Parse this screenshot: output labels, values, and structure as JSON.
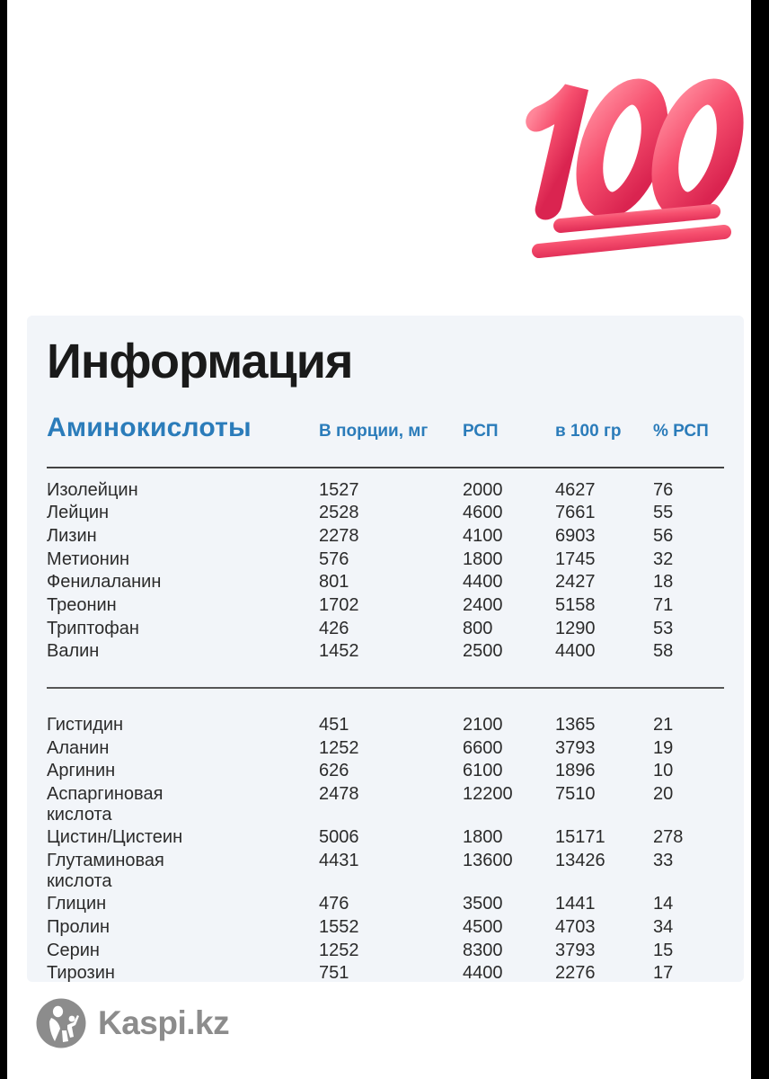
{
  "page": {
    "title": "Информация"
  },
  "emoji": {
    "name": "hundred-points",
    "value": "100"
  },
  "table": {
    "title": "Аминокислоты",
    "columns": [
      "В порции, мг",
      "РСП",
      "в 100 гр",
      "% РСП"
    ],
    "sections": [
      {
        "rows": [
          [
            "Изолейцин",
            "1527",
            "2000",
            "4627",
            "76"
          ],
          [
            "Лейцин",
            "2528",
            "4600",
            "7661",
            "55"
          ],
          [
            "Лизин",
            "2278",
            "4100",
            "6903",
            "56"
          ],
          [
            "Метионин",
            "576",
            "1800",
            "1745",
            "32"
          ],
          [
            "Фенилаланин",
            "801",
            "4400",
            "2427",
            "18"
          ],
          [
            "Треонин",
            "1702",
            "2400",
            "5158",
            "71"
          ],
          [
            "Триптофан",
            "426",
            "800",
            "1290",
            "53"
          ],
          [
            "Валин",
            "1452",
            "2500",
            "4400",
            "58"
          ]
        ]
      },
      {
        "rows": [
          [
            "Гистидин",
            "451",
            "2100",
            "1365",
            "21"
          ],
          [
            "Аланин",
            "1252",
            "6600",
            "3793",
            "19"
          ],
          [
            "Аргинин",
            "626",
            "6100",
            "1896",
            "10"
          ],
          [
            "Аспаргиновая\nкислота",
            "2478",
            "12200",
            "7510",
            "20"
          ],
          [
            "Цистин/Цистеин",
            "5006",
            "1800",
            "15171",
            "278"
          ],
          [
            "Глутаминовая\nкислота",
            "4431",
            "13600",
            "13426",
            "33"
          ],
          [
            "Глицин",
            "476",
            "3500",
            "1441",
            "14"
          ],
          [
            "Пролин",
            "1552",
            "4500",
            "4703",
            "34"
          ],
          [
            "Серин",
            "1252",
            "8300",
            "3793",
            "15"
          ],
          [
            "Тирозин",
            "751",
            "4400",
            "2276",
            "17"
          ]
        ]
      }
    ]
  },
  "footer": {
    "brand": "Kaspi.kz"
  },
  "colors": {
    "accent_blue": "#2b7cba",
    "panel_bg": "#f2f5f9",
    "brand_gray": "#8c8c8c",
    "emoji_red": "#ef3059",
    "letterbox_black": "#000000"
  }
}
